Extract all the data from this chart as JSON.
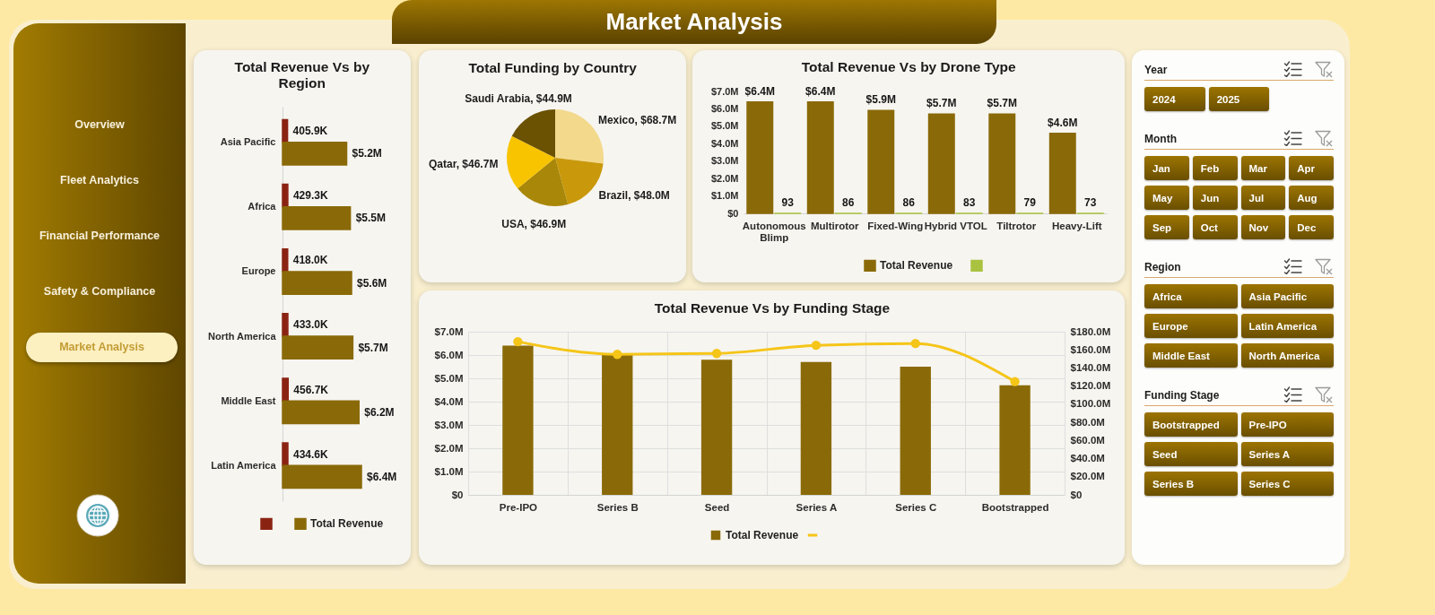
{
  "chart_data": [
    {
      "type": "other",
      "title": "Market Analysis",
      "categories": [
        "Overview",
        "Fleet Analytics",
        "Financial Performance",
        "Safety & Compliance",
        "Market Analysis"
      ]
    },
    {
      "type": "bar",
      "title": "Total Revenue Vs by Region",
      "orientation": "horizontal",
      "tick_labels": "y",
      "legend": "bottom",
      "categories": [
        "Asia Pacific",
        "Africa",
        "Europe",
        "North America",
        "Middle East",
        "Latin America"
      ],
      "series": [
        {
          "color": "#8b2313",
          "values": [
            405900,
            429300,
            418000,
            433000,
            456700,
            434600
          ],
          "value_labels": [
            "405.9K",
            "429.3K",
            "418.0K",
            "433.0K",
            "456.7K",
            "434.6K"
          ]
        },
        {
          "name": "Total Revenue",
          "color": "#8a6a08",
          "values": [
            5200000,
            5500000,
            5600000,
            5700000,
            6200000,
            6400000
          ],
          "value_labels": [
            "$5.2M",
            "$5.5M",
            "$5.6M",
            "$5.7M",
            "$6.2M",
            "$6.4M"
          ]
        }
      ]
    },
    {
      "type": "pie",
      "title": "Total Funding by Country",
      "categories": [
        "Mexico",
        "Brazil",
        "USA",
        "Qatar",
        "Saudi Arabia"
      ],
      "values": [
        68.7,
        48.0,
        46.9,
        46.7,
        44.9
      ],
      "value_labels": [
        "$68.7M",
        "$48.0M",
        "$46.9M",
        "$46.7M",
        "$44.9M"
      ],
      "colors": [
        "#f3d98c",
        "#c9990b",
        "#a98708",
        "#f8c400",
        "#6b5102"
      ]
    },
    {
      "type": "bar",
      "title": "Total Revenue Vs by Drone Type",
      "legend": "bottom",
      "categories": [
        "Autonomous Blimp",
        "Multirotor",
        "Fixed-Wing",
        "Hybrid VTOL",
        "Tiltrotor",
        "Heavy-Lift"
      ],
      "ylim": [
        0,
        7000000
      ],
      "yticks": [
        {
          "value": 0,
          "label": "$0"
        },
        {
          "value": 1000000,
          "label": "$1.0M"
        },
        {
          "value": 2000000,
          "label": "$2.0M"
        },
        {
          "value": 3000000,
          "label": "$3.0M"
        },
        {
          "value": 4000000,
          "label": "$4.0M"
        },
        {
          "value": 5000000,
          "label": "$5.0M"
        },
        {
          "value": 6000000,
          "label": "$6.0M"
        },
        {
          "value": 7000000,
          "label": "$7.0M"
        }
      ],
      "series": [
        {
          "name": "Total Revenue",
          "color": "#8a6a08",
          "values": [
            6400000,
            6400000,
            5900000,
            5700000,
            5700000,
            4600000
          ],
          "value_labels": [
            "$6.4M",
            "$6.4M",
            "$5.9M",
            "$5.7M",
            "$5.7M",
            "$4.6M"
          ]
        },
        {
          "color": "#a9c23f",
          "values": [
            93,
            86,
            86,
            83,
            79,
            73
          ],
          "value_labels": [
            "93",
            "86",
            "86",
            "83",
            "79",
            "73"
          ]
        }
      ]
    },
    {
      "type": "bar",
      "title": "Total Revenue Vs by Funding Stage",
      "legend": "bottom",
      "grid": true,
      "marker": "circle",
      "categories": [
        "Pre-IPO",
        "Series B",
        "Seed",
        "Series A",
        "Series C",
        "Bootstrapped"
      ],
      "ylim": [
        0,
        7000000
      ],
      "yticks": [
        {
          "value": 0,
          "label": "$0"
        },
        {
          "value": 1000000,
          "label": "$1.0M"
        },
        {
          "value": 2000000,
          "label": "$2.0M"
        },
        {
          "value": 3000000,
          "label": "$3.0M"
        },
        {
          "value": 4000000,
          "label": "$4.0M"
        },
        {
          "value": 5000000,
          "label": "$5.0M"
        },
        {
          "value": 6000000,
          "label": "$6.0M"
        },
        {
          "value": 7000000,
          "label": "$7.0M"
        }
      ],
      "y2lim": [
        0,
        180000000
      ],
      "y2ticks": [
        {
          "value": 0,
          "label": "$0"
        },
        {
          "value": 20000000,
          "label": "$20.0M"
        },
        {
          "value": 40000000,
          "label": "$40.0M"
        },
        {
          "value": 60000000,
          "label": "$60.0M"
        },
        {
          "value": 80000000,
          "label": "$80.0M"
        },
        {
          "value": 100000000,
          "label": "$100.0M"
        },
        {
          "value": 120000000,
          "label": "$120.0M"
        },
        {
          "value": 140000000,
          "label": "$140.0M"
        },
        {
          "value": 160000000,
          "label": "$160.0M"
        },
        {
          "value": 180000000,
          "label": "$180.0M"
        }
      ],
      "series": [
        {
          "name": "Total Revenue",
          "type": "bar",
          "color": "#8a6a08",
          "values": [
            6400000,
            6000000,
            5800000,
            5700000,
            5500000,
            4700000
          ]
        },
        {
          "type": "line",
          "axis": "y2",
          "color": "#f5c518",
          "values": [
            169000000,
            155000000,
            156000000,
            165000000,
            167000000,
            125000000
          ]
        }
      ]
    },
    {
      "type": "other",
      "title": "Year",
      "categories": [
        "2024",
        "2025"
      ]
    },
    {
      "type": "other",
      "title": "Month",
      "categories": [
        "Jan",
        "Feb",
        "Mar",
        "Apr",
        "May",
        "Jun",
        "Jul",
        "Aug",
        "Sep",
        "Oct",
        "Nov",
        "Dec"
      ]
    },
    {
      "type": "other",
      "title": "Region",
      "categories": [
        "Africa",
        "Asia Pacific",
        "Europe",
        "Latin America",
        "Middle East",
        "North America"
      ]
    },
    {
      "type": "other",
      "title": "Funding Stage",
      "categories": [
        "Bootstrapped",
        "Pre-IPO",
        "Seed",
        "Series A",
        "Series B",
        "Series C"
      ]
    }
  ]
}
